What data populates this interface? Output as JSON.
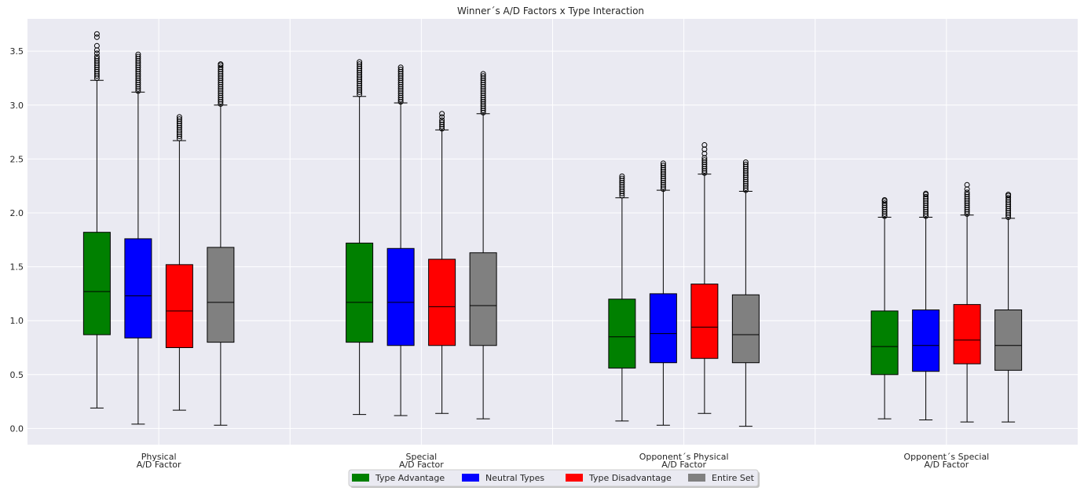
{
  "chart_data": {
    "type": "boxplot",
    "title": "Winner´s A/D Factors x Type Interaction",
    "xlabel": "",
    "ylabel": "",
    "ylim": [
      -0.15,
      3.8
    ],
    "yticks": [
      0.0,
      0.5,
      1.0,
      1.5,
      2.0,
      2.5,
      3.0,
      3.5
    ],
    "grid": true,
    "legend_position": "bottom-center",
    "categories": [
      [
        "Physical",
        "A/D Factor"
      ],
      [
        "Special",
        "A/D Factor"
      ],
      [
        "Opponent´s Physical",
        "A/D Factor"
      ],
      [
        "Opponent´s Special",
        "A/D Factor"
      ]
    ],
    "series": [
      {
        "name": "Type Advantage",
        "color": "#008000",
        "boxes": [
          {
            "whislo": 0.19,
            "q1": 0.87,
            "med": 1.27,
            "q3": 1.82,
            "whishi": 3.23,
            "fliers": [
              3.25,
              3.27,
              3.29,
              3.31,
              3.33,
              3.35,
              3.37,
              3.39,
              3.41,
              3.43,
              3.45,
              3.48,
              3.51,
              3.55,
              3.63,
              3.66
            ]
          },
          {
            "whislo": 0.13,
            "q1": 0.8,
            "med": 1.17,
            "q3": 1.72,
            "whishi": 3.08,
            "fliers": [
              3.1,
              3.12,
              3.14,
              3.16,
              3.18,
              3.2,
              3.22,
              3.24,
              3.26,
              3.28,
              3.3,
              3.32,
              3.34,
              3.36,
              3.38,
              3.4
            ]
          },
          {
            "whislo": 0.07,
            "q1": 0.56,
            "med": 0.85,
            "q3": 1.2,
            "whishi": 2.14,
            "fliers": [
              2.16,
              2.18,
              2.2,
              2.22,
              2.24,
              2.26,
              2.28,
              2.3,
              2.32,
              2.34
            ]
          },
          {
            "whislo": 0.09,
            "q1": 0.5,
            "med": 0.76,
            "q3": 1.09,
            "whishi": 1.96,
            "fliers": [
              1.97,
              1.99,
              2.01,
              2.03,
              2.05,
              2.07,
              2.09,
              2.11,
              2.12
            ]
          }
        ]
      },
      {
        "name": "Neutral Types",
        "color": "#0000ff",
        "boxes": [
          {
            "whislo": 0.04,
            "q1": 0.84,
            "med": 1.23,
            "q3": 1.76,
            "whishi": 3.12,
            "fliers": [
              3.13,
              3.15,
              3.17,
              3.19,
              3.21,
              3.23,
              3.25,
              3.27,
              3.29,
              3.31,
              3.33,
              3.35,
              3.37,
              3.39,
              3.41,
              3.43,
              3.45,
              3.47
            ]
          },
          {
            "whislo": 0.12,
            "q1": 0.77,
            "med": 1.17,
            "q3": 1.67,
            "whishi": 3.02,
            "fliers": [
              3.03,
              3.05,
              3.07,
              3.09,
              3.11,
              3.13,
              3.15,
              3.17,
              3.19,
              3.21,
              3.23,
              3.25,
              3.27,
              3.29,
              3.31,
              3.33,
              3.35
            ]
          },
          {
            "whislo": 0.03,
            "q1": 0.61,
            "med": 0.88,
            "q3": 1.25,
            "whishi": 2.21,
            "fliers": [
              2.22,
              2.24,
              2.26,
              2.28,
              2.3,
              2.32,
              2.34,
              2.36,
              2.38,
              2.4,
              2.42,
              2.44,
              2.46
            ]
          },
          {
            "whislo": 0.08,
            "q1": 0.53,
            "med": 0.77,
            "q3": 1.1,
            "whishi": 1.96,
            "fliers": [
              1.97,
              1.99,
              2.01,
              2.03,
              2.05,
              2.07,
              2.09,
              2.11,
              2.13,
              2.15,
              2.17,
              2.18
            ]
          }
        ]
      },
      {
        "name": "Type Disadvantage",
        "color": "#ff0000",
        "boxes": [
          {
            "whislo": 0.17,
            "q1": 0.75,
            "med": 1.09,
            "q3": 1.52,
            "whishi": 2.67,
            "fliers": [
              2.69,
              2.71,
              2.73,
              2.75,
              2.77,
              2.79,
              2.81,
              2.83,
              2.85,
              2.87,
              2.89
            ]
          },
          {
            "whislo": 0.14,
            "q1": 0.77,
            "med": 1.13,
            "q3": 1.57,
            "whishi": 2.77,
            "fliers": [
              2.78,
              2.8,
              2.82,
              2.84,
              2.86,
              2.89,
              2.92
            ]
          },
          {
            "whislo": 0.14,
            "q1": 0.65,
            "med": 0.94,
            "q3": 1.34,
            "whishi": 2.36,
            "fliers": [
              2.37,
              2.39,
              2.41,
              2.43,
              2.45,
              2.47,
              2.49,
              2.51,
              2.55,
              2.59,
              2.63
            ]
          },
          {
            "whislo": 0.06,
            "q1": 0.6,
            "med": 0.82,
            "q3": 1.15,
            "whishi": 1.98,
            "fliers": [
              1.99,
              2.01,
              2.03,
              2.05,
              2.07,
              2.09,
              2.11,
              2.13,
              2.15,
              2.17,
              2.19,
              2.22,
              2.26
            ]
          }
        ]
      },
      {
        "name": "Entire Set",
        "color": "#808080",
        "boxes": [
          {
            "whislo": 0.03,
            "q1": 0.8,
            "med": 1.17,
            "q3": 1.68,
            "whishi": 3.0,
            "fliers": [
              3.01,
              3.03,
              3.05,
              3.07,
              3.09,
              3.11,
              3.13,
              3.15,
              3.17,
              3.19,
              3.21,
              3.23,
              3.25,
              3.27,
              3.29,
              3.31,
              3.33,
              3.35,
              3.37,
              3.38
            ]
          },
          {
            "whislo": 0.09,
            "q1": 0.77,
            "med": 1.14,
            "q3": 1.63,
            "whishi": 2.92,
            "fliers": [
              2.93,
              2.95,
              2.97,
              2.99,
              3.01,
              3.03,
              3.05,
              3.07,
              3.09,
              3.11,
              3.13,
              3.15,
              3.17,
              3.19,
              3.21,
              3.23,
              3.25,
              3.27,
              3.29
            ]
          },
          {
            "whislo": 0.02,
            "q1": 0.61,
            "med": 0.87,
            "q3": 1.24,
            "whishi": 2.2,
            "fliers": [
              2.21,
              2.23,
              2.25,
              2.27,
              2.29,
              2.31,
              2.33,
              2.35,
              2.37,
              2.39,
              2.41,
              2.43,
              2.45,
              2.47
            ]
          },
          {
            "whislo": 0.06,
            "q1": 0.54,
            "med": 0.77,
            "q3": 1.1,
            "whishi": 1.95,
            "fliers": [
              1.96,
              1.98,
              2.0,
              2.02,
              2.04,
              2.06,
              2.08,
              2.1,
              2.12,
              2.14,
              2.16,
              2.17
            ]
          }
        ]
      }
    ],
    "colors": {
      "plot_background": "#eaeaf2",
      "grid": "#ffffff",
      "text": "#262626"
    }
  }
}
